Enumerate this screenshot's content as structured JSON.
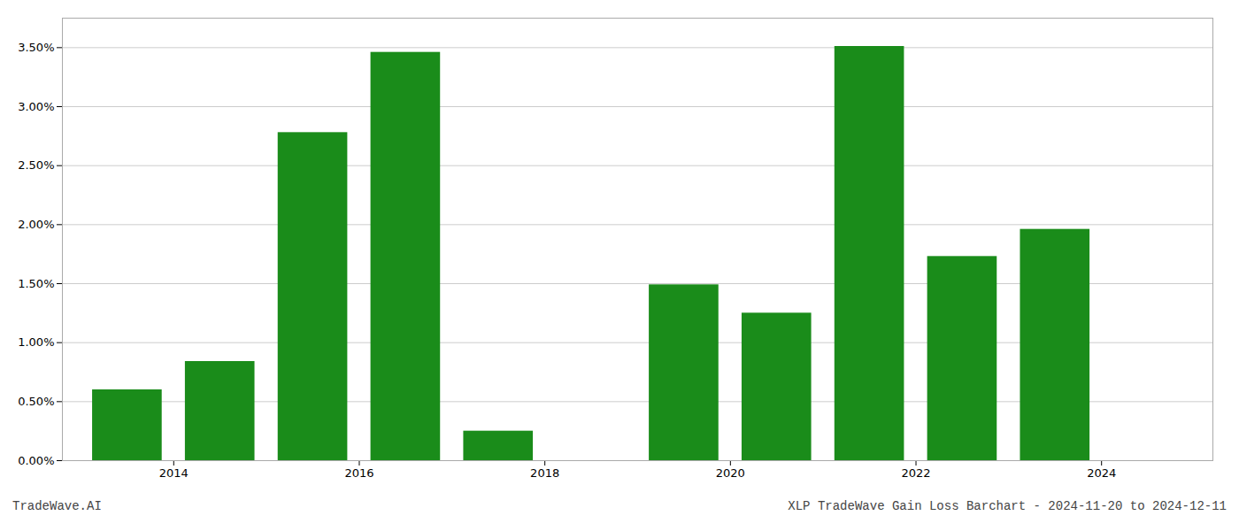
{
  "chart_data": {
    "type": "bar",
    "x": [
      2013,
      2014,
      2015,
      2016,
      2017,
      2018,
      2019,
      2020,
      2021,
      2022,
      2023
    ],
    "values": [
      0.006,
      0.0084,
      0.0278,
      0.0346,
      0.0025,
      0.0,
      0.0149,
      0.0125,
      0.0351,
      0.0173,
      0.0196
    ],
    "color": "#1a8c1a",
    "xlim": [
      2012.3,
      2024.7
    ],
    "xticks": [
      {
        "value": 2013.5,
        "label": "2014"
      },
      {
        "value": 2015.5,
        "label": "2016"
      },
      {
        "value": 2017.5,
        "label": "2018"
      },
      {
        "value": 2019.5,
        "label": "2020"
      },
      {
        "value": 2021.5,
        "label": "2022"
      },
      {
        "value": 2023.5,
        "label": "2024"
      }
    ],
    "ylim": [
      0.0,
      0.0375
    ],
    "yticks": [
      {
        "value": 0,
        "label": "0.00%"
      },
      {
        "value": 0.005,
        "label": "0.50%"
      },
      {
        "value": 0.01,
        "label": "1.00%"
      },
      {
        "value": 0.015,
        "label": "1.50%"
      },
      {
        "value": 0.02,
        "label": "2.00%"
      },
      {
        "value": 0.025,
        "label": "2.50%"
      },
      {
        "value": 0.03,
        "label": "3.00%"
      },
      {
        "value": 0.035,
        "label": "3.50%"
      }
    ],
    "grid": "y",
    "annotations": [
      "TradeWave.AI",
      "XLP TradeWave Gain Loss Barchart - 2024-11-20 to 2024-12-11"
    ]
  }
}
